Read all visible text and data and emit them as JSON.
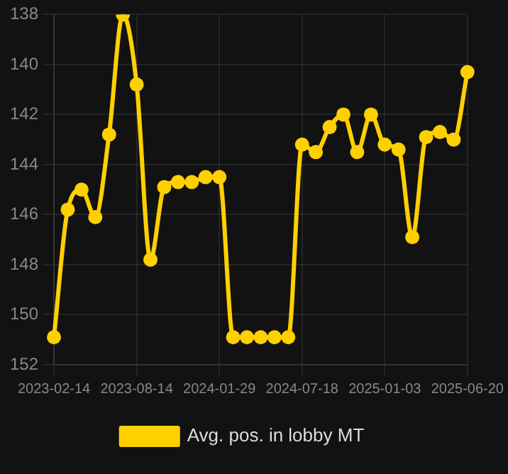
{
  "chart_data": {
    "type": "line",
    "categories": [
      "2023-02-14",
      null,
      null,
      null,
      null,
      null,
      "2023-08-14",
      null,
      null,
      null,
      null,
      null,
      "2024-01-29",
      null,
      null,
      null,
      null,
      null,
      "2024-07-18",
      null,
      null,
      null,
      null,
      null,
      "2025-01-03",
      null,
      null,
      null,
      null,
      null,
      "2025-06-20"
    ],
    "series": [
      {
        "name": "Avg. pos. in lobby MT",
        "color": "#ffd000",
        "values": [
          150.9,
          145.8,
          145.0,
          146.1,
          142.8,
          138.0,
          140.8,
          147.8,
          144.9,
          144.7,
          144.7,
          144.5,
          144.5,
          150.9,
          150.9,
          150.9,
          150.9,
          150.9,
          143.2,
          143.5,
          142.5,
          142.0,
          143.5,
          142.0,
          143.2,
          143.4,
          146.9,
          142.9,
          142.7,
          143.0,
          140.3
        ]
      }
    ],
    "ylim": [
      152,
      138
    ],
    "yticks": [
      138,
      140,
      142,
      144,
      146,
      148,
      150,
      152
    ],
    "grid": true,
    "legend": "bottom",
    "marker": "circle",
    "line_style": "solid"
  }
}
